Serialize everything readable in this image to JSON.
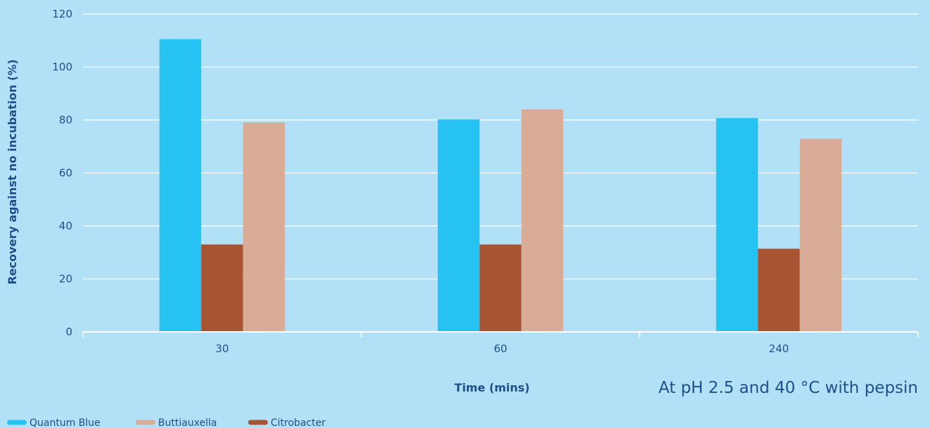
{
  "chart_data": {
    "type": "bar",
    "categories": [
      "30",
      "60",
      "240"
    ],
    "series": [
      {
        "name": "Quantum Blue",
        "color": "#26c3f2",
        "values": [
          110.5,
          80.2,
          80.7
        ]
      },
      {
        "name": "Citrobacter",
        "color": "#a85433",
        "values": [
          33.0,
          33.0,
          31.4
        ]
      },
      {
        "name": "Buttiauxella",
        "color": "#d8ac96",
        "values": [
          79.0,
          84.0,
          72.9
        ]
      }
    ],
    "legend_order": [
      0,
      2,
      1
    ],
    "legend_position": "bottom-left",
    "xlabel": "Time (mins)",
    "ylabel": "Recovery against no incubation (%)",
    "ylim": [
      0,
      120
    ],
    "yticks": [
      0,
      20,
      40,
      60,
      80,
      100,
      120
    ],
    "grid": true,
    "annotation": "At pH 2.5 and 40 °C with pepsin"
  }
}
